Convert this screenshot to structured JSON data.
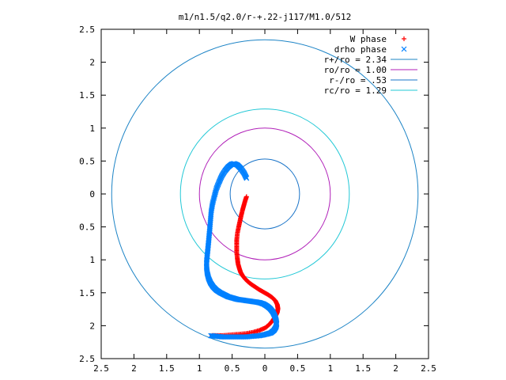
{
  "chart_data": {
    "type": "scatter",
    "title": "m1/n1.5/q2.0/r-+.22-j117/M1.0/512",
    "xlim": [
      2.5,
      -2.5
    ],
    "ylim": [
      -2.5,
      2.5
    ],
    "x_ticks": [
      "2.5",
      "2",
      "1.5",
      "1",
      "0.5",
      "0",
      "0.5",
      "1",
      "1.5",
      "2",
      "2.5"
    ],
    "y_ticks": [
      "2.5",
      "2",
      "1.5",
      "1",
      "0.5",
      "0",
      "0.5",
      "1",
      "1.5",
      "2",
      "2.5"
    ],
    "x_tick_values": [
      2.5,
      2,
      1.5,
      1,
      0.5,
      0,
      -0.5,
      -1,
      -1.5,
      -2,
      -2.5
    ],
    "y_tick_values": [
      2.5,
      2,
      1.5,
      1,
      0.5,
      0,
      -0.5,
      -1,
      -1.5,
      -2,
      -2.5
    ],
    "grid": false,
    "legend_position": "top-right",
    "series": [
      {
        "name": "W phase",
        "kind": "points",
        "marker": "plus",
        "color": "#ff0000",
        "x": [
          0.28,
          0.3,
          0.32,
          0.34,
          0.36,
          0.38,
          0.4,
          0.42,
          0.43,
          0.43,
          0.43,
          0.42,
          0.41,
          0.39,
          0.37,
          0.34,
          0.3,
          0.26,
          0.21,
          0.15,
          0.09,
          0.02,
          -0.05,
          -0.11,
          -0.16,
          -0.19,
          -0.2,
          -0.19,
          -0.16,
          -0.12,
          -0.07,
          -0.01,
          0.08,
          0.18,
          0.29,
          0.41,
          0.53,
          0.65,
          0.75,
          0.82
        ],
        "y": [
          -0.04,
          -0.1,
          -0.17,
          -0.24,
          -0.32,
          -0.41,
          -0.5,
          -0.6,
          -0.7,
          -0.8,
          -0.89,
          -0.98,
          -1.06,
          -1.13,
          -1.19,
          -1.24,
          -1.29,
          -1.33,
          -1.37,
          -1.41,
          -1.45,
          -1.49,
          -1.53,
          -1.57,
          -1.62,
          -1.68,
          -1.74,
          -1.8,
          -1.86,
          -1.92,
          -1.98,
          -2.03,
          -2.07,
          -2.1,
          -2.12,
          -2.13,
          -2.14,
          -2.15,
          -2.15,
          -2.15
        ]
      },
      {
        "name": "drho phase",
        "kind": "points",
        "marker": "cross",
        "color": "#0080ff",
        "x": [
          0.28,
          0.32,
          0.37,
          0.42,
          0.47,
          0.51,
          0.56,
          0.61,
          0.66,
          0.7,
          0.74,
          0.77,
          0.8,
          0.82,
          0.83,
          0.84,
          0.85,
          0.86,
          0.87,
          0.88,
          0.89,
          0.89,
          0.88,
          0.86,
          0.83,
          0.79,
          0.74,
          0.68,
          0.62,
          0.56,
          0.49,
          0.42,
          0.35,
          0.28,
          0.21,
          0.14,
          0.08,
          0.02,
          -0.03,
          -0.08,
          -0.12,
          -0.15,
          -0.17,
          -0.18,
          -0.17,
          -0.14,
          -0.09,
          -0.02,
          0.07,
          0.17,
          0.29,
          0.41,
          0.53,
          0.65,
          0.75,
          0.84
        ],
        "y": [
          0.24,
          0.32,
          0.39,
          0.44,
          0.46,
          0.45,
          0.41,
          0.35,
          0.27,
          0.18,
          0.08,
          -0.03,
          -0.15,
          -0.27,
          -0.39,
          -0.51,
          -0.62,
          -0.73,
          -0.83,
          -0.93,
          -1.03,
          -1.12,
          -1.2,
          -1.28,
          -1.35,
          -1.41,
          -1.46,
          -1.5,
          -1.53,
          -1.56,
          -1.58,
          -1.6,
          -1.61,
          -1.62,
          -1.63,
          -1.64,
          -1.65,
          -1.67,
          -1.7,
          -1.74,
          -1.79,
          -1.85,
          -1.91,
          -1.97,
          -2.02,
          -2.07,
          -2.11,
          -2.13,
          -2.15,
          -2.16,
          -2.17,
          -2.17,
          -2.17,
          -2.17,
          -2.16,
          -2.15
        ]
      },
      {
        "name": "r+/ro = 2.34",
        "kind": "circle",
        "radius": 2.34,
        "color": "#1d84c6"
      },
      {
        "name": "ro/ro = 1.00",
        "kind": "circle",
        "radius": 1.0,
        "color": "#b01fb8"
      },
      {
        "name": "r-/ro = .53",
        "kind": "circle",
        "radius": 0.53,
        "color": "#1a74c8"
      },
      {
        "name": "rc/ro = 1.29",
        "kind": "circle",
        "radius": 1.29,
        "color": "#22c8d6"
      }
    ]
  }
}
